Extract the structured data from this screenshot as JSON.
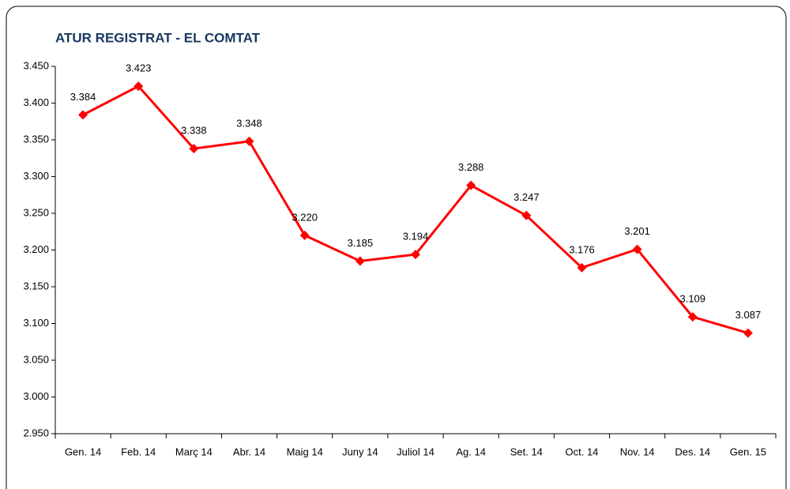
{
  "chart_data": {
    "type": "line",
    "title": "ATUR REGISTRAT - EL COMTAT",
    "categories": [
      "Gen. 14",
      "Feb. 14",
      "Març 14",
      "Abr. 14",
      "Maig 14",
      "Juny 14",
      "Juliol 14",
      "Ag. 14",
      "Set. 14",
      "Oct. 14",
      "Nov. 14",
      "Des. 14",
      "Gen. 15"
    ],
    "values": [
      3384,
      3423,
      3338,
      3348,
      3220,
      3185,
      3194,
      3288,
      3247,
      3176,
      3201,
      3109,
      3087
    ],
    "value_labels": [
      "3.384",
      "3.423",
      "3.338",
      "3.348",
      "3.220",
      "3.185",
      "3.194",
      "3.288",
      "3.247",
      "3.176",
      "3.201",
      "3.109",
      "3.087"
    ],
    "color": "#ff0000",
    "ylim": [
      2950,
      3450
    ],
    "yticks": [
      {
        "value": 2950,
        "label": "2.950"
      },
      {
        "value": 3000,
        "label": "3.000"
      },
      {
        "value": 3050,
        "label": "3.050"
      },
      {
        "value": 3100,
        "label": "3.100"
      },
      {
        "value": 3150,
        "label": "3.150"
      },
      {
        "value": 3200,
        "label": "3.200"
      },
      {
        "value": 3250,
        "label": "3.250"
      },
      {
        "value": 3300,
        "label": "3.300"
      },
      {
        "value": 3350,
        "label": "3.350"
      },
      {
        "value": 3400,
        "label": "3.400"
      },
      {
        "value": 3450,
        "label": "3.450"
      }
    ],
    "grid": false
  }
}
